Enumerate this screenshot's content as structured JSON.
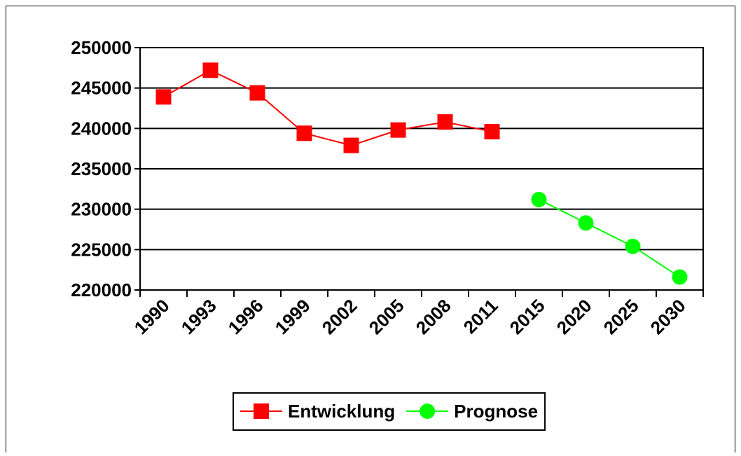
{
  "chart_data": {
    "type": "line",
    "categories": [
      "1990",
      "1993",
      "1996",
      "1999",
      "2002",
      "2005",
      "2008",
      "2011",
      "2015",
      "2020",
      "2025",
      "2030"
    ],
    "series": [
      {
        "name": "Entwicklung",
        "color": "#ff0000",
        "marker": "square",
        "values": [
          243900,
          247200,
          244400,
          239400,
          237900,
          239800,
          240800,
          239600,
          null,
          null,
          null,
          null
        ]
      },
      {
        "name": "Prognose",
        "color": "#00ff00",
        "marker": "circle",
        "values": [
          null,
          null,
          null,
          null,
          null,
          null,
          null,
          null,
          231200,
          228300,
          225400,
          221600
        ]
      }
    ],
    "ylim": [
      220000,
      250000
    ],
    "yticks": [
      220000,
      225000,
      230000,
      235000,
      240000,
      245000,
      250000
    ],
    "grid": true,
    "legend": "bottom"
  }
}
